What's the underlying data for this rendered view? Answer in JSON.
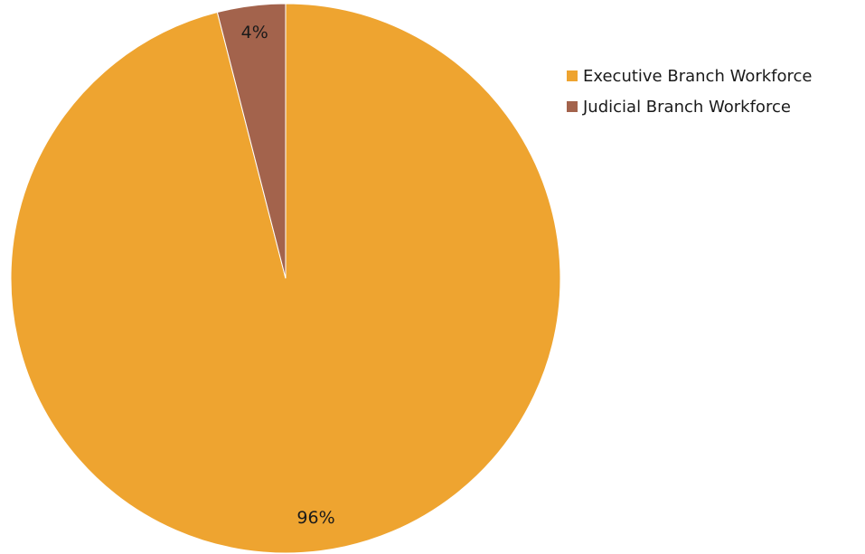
{
  "chart_data": {
    "type": "pie",
    "series": [
      {
        "name": "Executive Branch Workforce",
        "value": 96,
        "label": "96%",
        "color": "#eea430"
      },
      {
        "name": "Judicial Branch Workforce",
        "value": 4,
        "label": "4%",
        "color": "#a3634c"
      }
    ],
    "start": "12 o'clock",
    "direction": "clockwise",
    "legend": "right"
  }
}
